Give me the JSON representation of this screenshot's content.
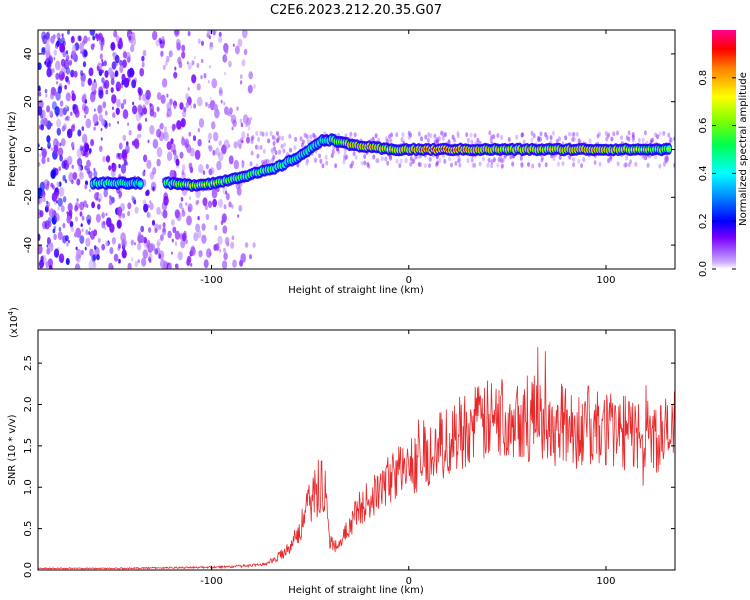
{
  "title": "C2E6.2023.212.20.35.G07",
  "chart_data": [
    {
      "type": "heatmap",
      "xlabel": "Height of straight line (km)",
      "ylabel": "Frequency (Hz)",
      "xlim": [
        -188,
        135
      ],
      "ylim": [
        -50,
        50
      ],
      "xticks": [
        -100,
        0,
        100
      ],
      "yticks": [
        -40,
        -20,
        0,
        20,
        40
      ],
      "colorbar": {
        "label": "Normalized spectral amplitude",
        "ticks": [
          "0.0",
          "0.2",
          "0.4",
          "0.6",
          "0.8"
        ],
        "range": [
          0,
          1
        ]
      },
      "ridge": [
        {
          "x": -160,
          "y": -14,
          "a": 0.5
        },
        {
          "x": -150,
          "y": -14,
          "a": 0.55
        },
        {
          "x": -135,
          "y": -14,
          "a": 0.45
        },
        {
          "x": -123,
          "y": -14,
          "a": 0.55
        },
        {
          "x": -110,
          "y": -15,
          "a": 0.75
        },
        {
          "x": -98,
          "y": -14,
          "a": 0.7
        },
        {
          "x": -88,
          "y": -12,
          "a": 0.6
        },
        {
          "x": -78,
          "y": -10,
          "a": 0.6
        },
        {
          "x": -68,
          "y": -8,
          "a": 0.55
        },
        {
          "x": -58,
          "y": -4,
          "a": 0.5
        },
        {
          "x": -50,
          "y": 0,
          "a": 0.5
        },
        {
          "x": -44,
          "y": 4,
          "a": 0.45
        },
        {
          "x": -38,
          "y": 4,
          "a": 0.6
        },
        {
          "x": -30,
          "y": 2,
          "a": 0.8
        },
        {
          "x": -20,
          "y": 1,
          "a": 0.85
        },
        {
          "x": -10,
          "y": 0,
          "a": 0.75
        },
        {
          "x": 0,
          "y": 0,
          "a": 0.8
        },
        {
          "x": 10,
          "y": 0,
          "a": 0.9
        },
        {
          "x": 20,
          "y": 0,
          "a": 0.9
        },
        {
          "x": 30,
          "y": 0,
          "a": 0.85
        },
        {
          "x": 40,
          "y": 0,
          "a": 0.8
        },
        {
          "x": 50,
          "y": 0,
          "a": 0.75
        },
        {
          "x": 60,
          "y": 0,
          "a": 0.8
        },
        {
          "x": 70,
          "y": 0,
          "a": 0.75
        },
        {
          "x": 80,
          "y": 0,
          "a": 0.8
        },
        {
          "x": 90,
          "y": 0,
          "a": 0.85
        },
        {
          "x": 100,
          "y": 0,
          "a": 0.8
        },
        {
          "x": 110,
          "y": 0,
          "a": 0.75
        },
        {
          "x": 120,
          "y": 0,
          "a": 0.7
        },
        {
          "x": 133,
          "y": 0,
          "a": 0.6
        }
      ]
    },
    {
      "type": "line",
      "xlabel": "Height of straight line (km)",
      "ylabel": "SNR (10 * v/v)",
      "scale_label": "(x10",
      "scale_exp": "4",
      "scale_close": ")",
      "xlim": [
        -188,
        135
      ],
      "ylim": [
        0,
        2.9
      ],
      "xticks": [
        -100,
        0,
        100
      ],
      "yticks": [
        0.0,
        0.5,
        1.0,
        1.5,
        2.0,
        2.5
      ],
      "series": [
        {
          "color": "#e8292b",
          "x": [
            -188,
            -150,
            -110,
            -90,
            -75,
            -68,
            -62,
            -56,
            -50,
            -46,
            -44,
            -42,
            -40,
            -38,
            -35,
            -30,
            -25,
            -20,
            -15,
            -10,
            -5,
            0,
            5,
            10,
            15,
            20,
            25,
            30,
            35,
            40,
            45,
            50,
            55,
            60,
            65,
            70,
            75,
            80,
            85,
            90,
            95,
            100,
            105,
            110,
            115,
            120,
            125,
            130,
            135
          ],
          "y": [
            0.02,
            0.02,
            0.03,
            0.04,
            0.06,
            0.12,
            0.25,
            0.45,
            0.8,
            1.0,
            1.1,
            0.9,
            0.35,
            0.3,
            0.3,
            0.55,
            0.75,
            0.85,
            0.95,
            1.1,
            1.2,
            1.25,
            1.3,
            1.4,
            1.5,
            1.55,
            1.65,
            1.75,
            1.75,
            1.8,
            1.8,
            1.85,
            1.9,
            1.8,
            1.85,
            1.8,
            1.7,
            1.75,
            1.7,
            1.75,
            1.7,
            1.7,
            1.7,
            1.65,
            1.65,
            1.65,
            1.6,
            1.65,
            1.6
          ]
        }
      ]
    }
  ]
}
